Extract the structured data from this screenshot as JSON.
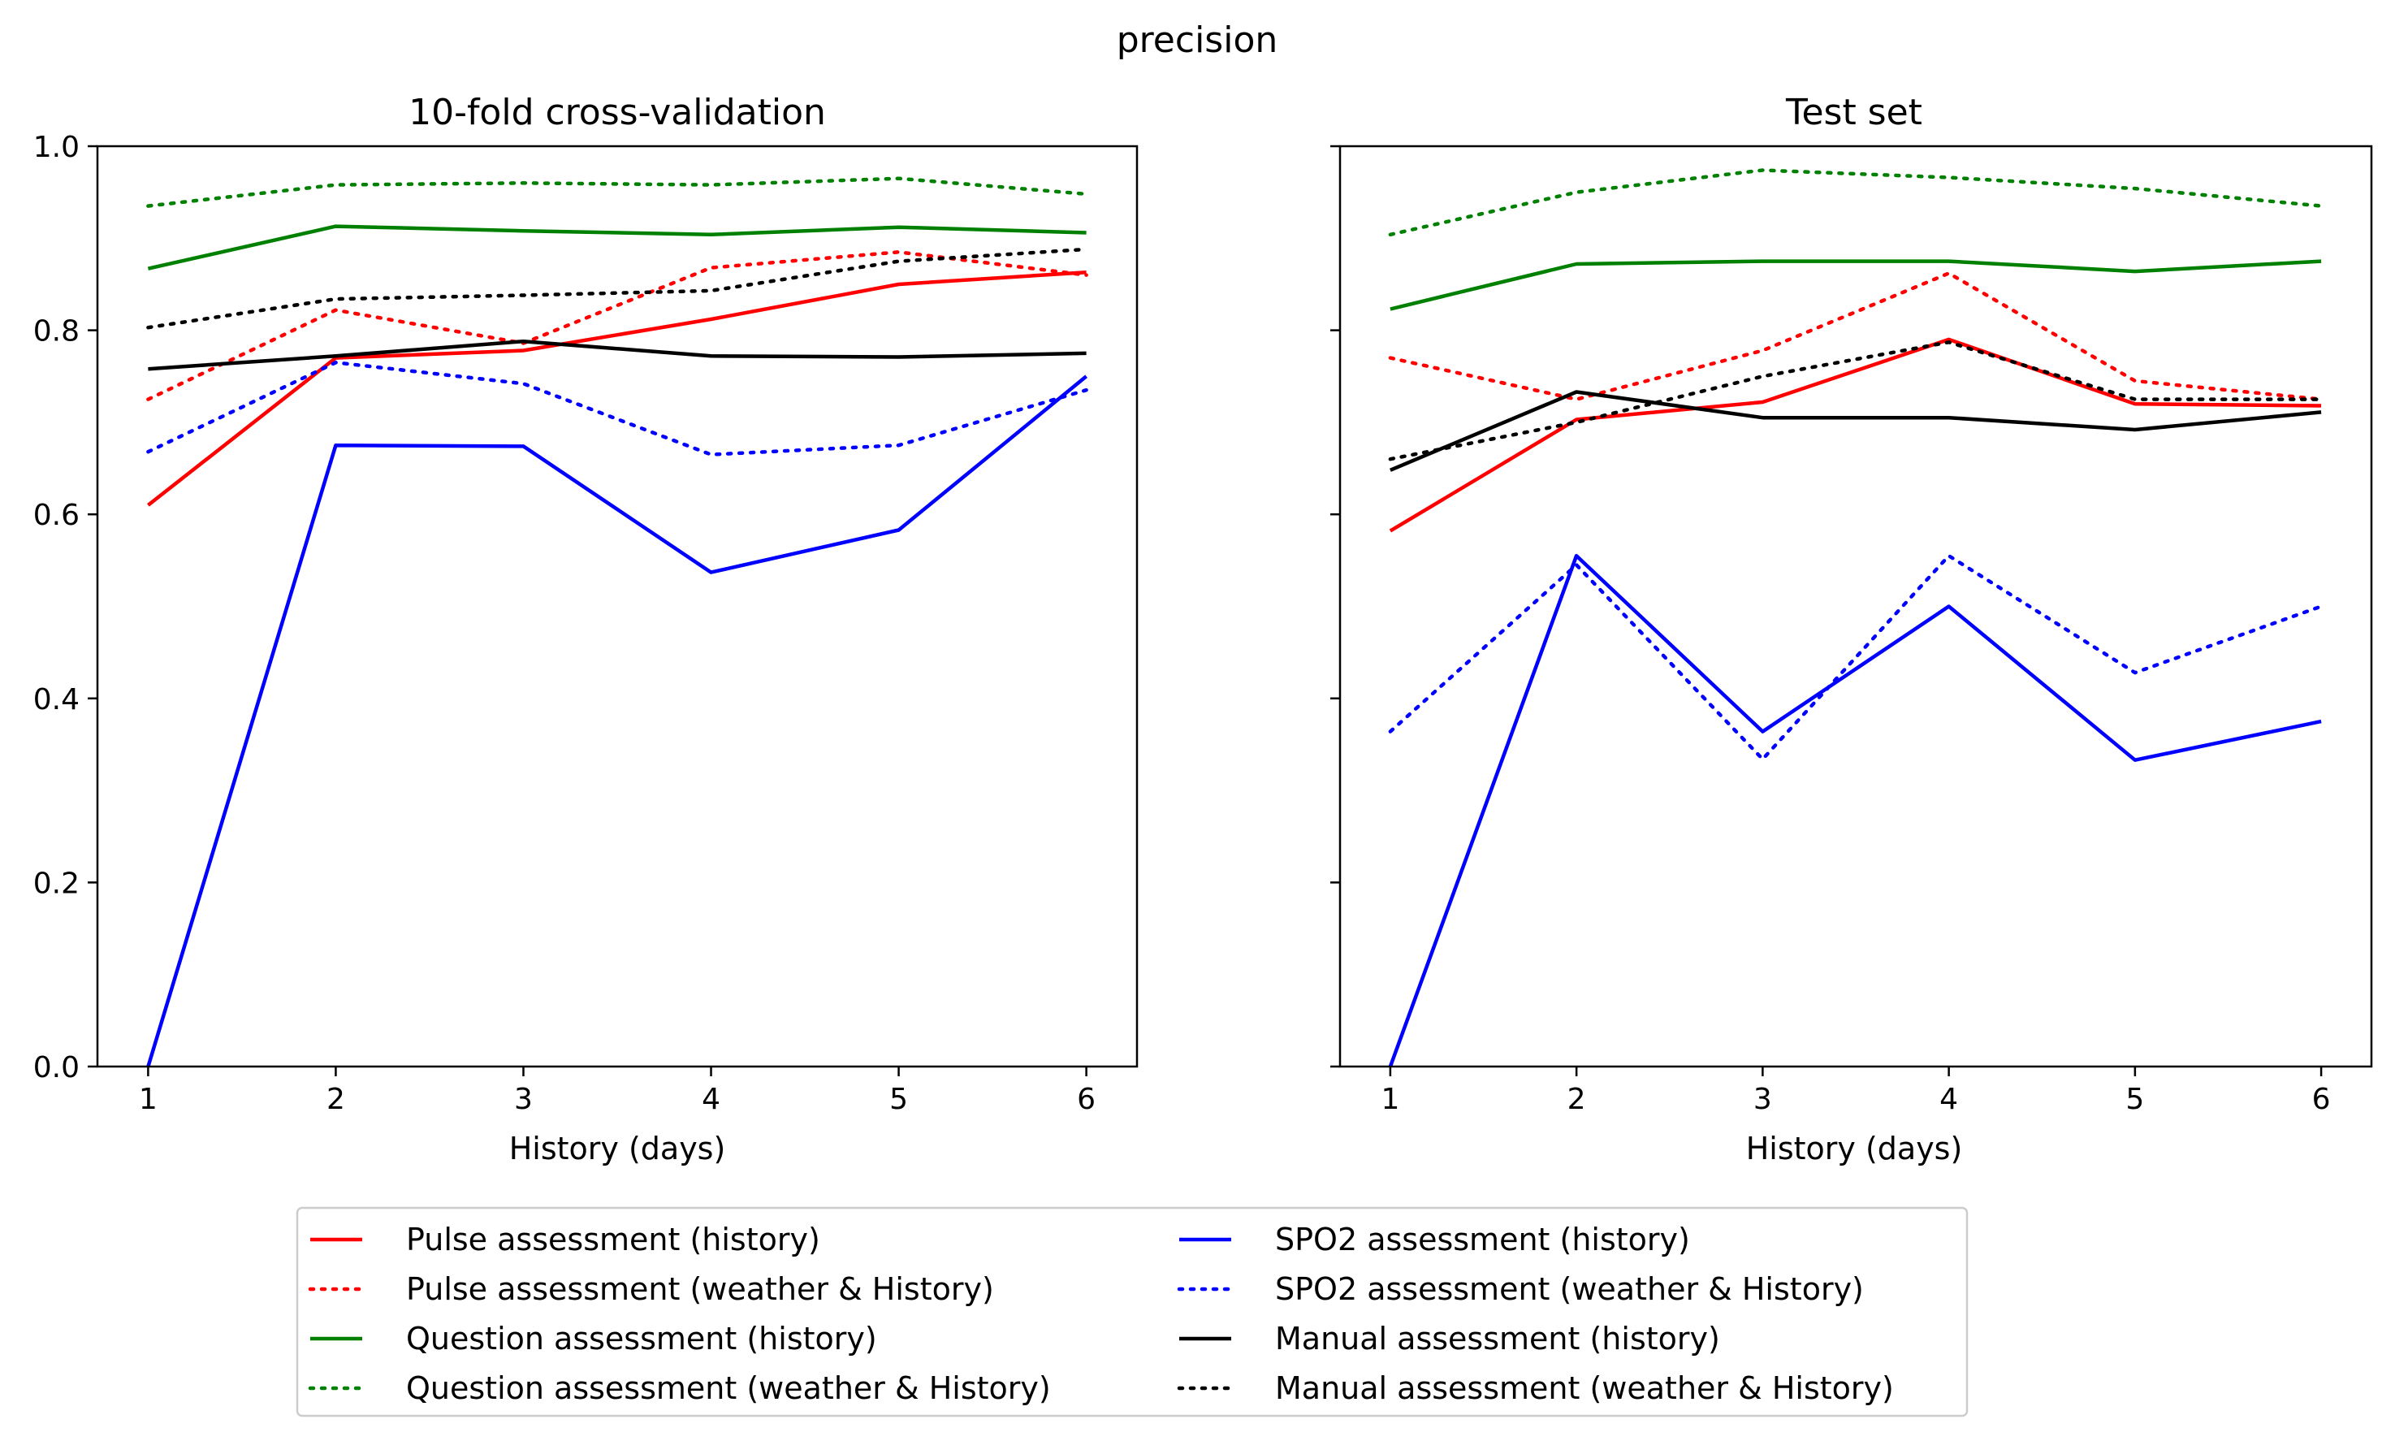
{
  "figure": {
    "suptitle": "precision",
    "legend_placement": "bottom-center"
  },
  "series_styles": [
    {
      "name": "Pulse assessment (history)",
      "color": "#ff0000",
      "dash": "solid"
    },
    {
      "name": "Pulse assessment (weather & History)",
      "color": "#ff0000",
      "dash": "dotted"
    },
    {
      "name": "Question assessment (history)",
      "color": "#008000",
      "dash": "solid"
    },
    {
      "name": "Question assessment (weather & History)",
      "color": "#008000",
      "dash": "dotted"
    },
    {
      "name": "SPO2 assessment (history)",
      "color": "#0000ff",
      "dash": "solid"
    },
    {
      "name": "SPO2 assessment (weather & History)",
      "color": "#0000ff",
      "dash": "dotted"
    },
    {
      "name": "Manual assessment (history)",
      "color": "#000000",
      "dash": "solid"
    },
    {
      "name": "Manual assessment (weather & History)",
      "color": "#000000",
      "dash": "dotted"
    }
  ],
  "chart_data": [
    {
      "type": "line",
      "title": "10-fold cross-validation",
      "xlabel": "History (days)",
      "ylabel": "",
      "x": [
        1,
        2,
        3,
        4,
        5,
        6
      ],
      "xlim": [
        0.73,
        6.27
      ],
      "ylim": [
        0.0,
        1.0
      ],
      "xticks": [
        "1",
        "2",
        "3",
        "4",
        "5",
        "6"
      ],
      "yticks": [
        "0.0",
        "0.2",
        "0.4",
        "0.6",
        "0.8",
        "1.0"
      ],
      "grid": false,
      "series": [
        {
          "name": "Pulse assessment (history)",
          "values": [
            0.61,
            0.77,
            0.778,
            0.812,
            0.85,
            0.863
          ]
        },
        {
          "name": "Pulse assessment (weather & History)",
          "values": [
            0.725,
            0.822,
            0.786,
            0.868,
            0.885,
            0.86
          ]
        },
        {
          "name": "Question assessment (history)",
          "values": [
            0.867,
            0.913,
            0.908,
            0.904,
            0.912,
            0.906
          ]
        },
        {
          "name": "Question assessment (weather & History)",
          "values": [
            0.935,
            0.958,
            0.96,
            0.958,
            0.965,
            0.948
          ]
        },
        {
          "name": "SPO2 assessment (history)",
          "values": [
            0.0,
            0.675,
            0.674,
            0.537,
            0.583,
            0.75
          ]
        },
        {
          "name": "SPO2 assessment (weather & History)",
          "values": [
            0.668,
            0.765,
            0.742,
            0.665,
            0.675,
            0.735
          ]
        },
        {
          "name": "Manual assessment (history)",
          "values": [
            0.758,
            0.772,
            0.788,
            0.772,
            0.771,
            0.775
          ]
        },
        {
          "name": "Manual assessment (weather & History)",
          "values": [
            0.803,
            0.834,
            0.838,
            0.843,
            0.875,
            0.888
          ]
        }
      ]
    },
    {
      "type": "line",
      "title": "Test set",
      "xlabel": "History (days)",
      "ylabel": "",
      "x": [
        1,
        2,
        3,
        4,
        5,
        6
      ],
      "xlim": [
        0.73,
        6.27
      ],
      "ylim": [
        0.0,
        1.0
      ],
      "xticks": [
        "1",
        "2",
        "3",
        "4",
        "5",
        "6"
      ],
      "yticks": [],
      "grid": false,
      "series": [
        {
          "name": "Pulse assessment (history)",
          "values": [
            0.582,
            0.703,
            0.722,
            0.79,
            0.72,
            0.718
          ]
        },
        {
          "name": "Pulse assessment (weather & History)",
          "values": [
            0.77,
            0.725,
            0.778,
            0.862,
            0.745,
            0.725
          ]
        },
        {
          "name": "Question assessment (history)",
          "values": [
            0.823,
            0.872,
            0.875,
            0.875,
            0.864,
            0.875
          ]
        },
        {
          "name": "Question assessment (weather & History)",
          "values": [
            0.904,
            0.95,
            0.974,
            0.966,
            0.954,
            0.935
          ]
        },
        {
          "name": "SPO2 assessment (history)",
          "values": [
            0.0,
            0.555,
            0.364,
            0.5,
            0.333,
            0.375
          ]
        },
        {
          "name": "SPO2 assessment (weather & History)",
          "values": [
            0.364,
            0.545,
            0.334,
            0.555,
            0.428,
            0.5
          ]
        },
        {
          "name": "Manual assessment (history)",
          "values": [
            0.648,
            0.733,
            0.705,
            0.705,
            0.692,
            0.711
          ]
        },
        {
          "name": "Manual assessment (weather & History)",
          "values": [
            0.66,
            0.7,
            0.75,
            0.787,
            0.725,
            0.725
          ]
        }
      ]
    }
  ]
}
